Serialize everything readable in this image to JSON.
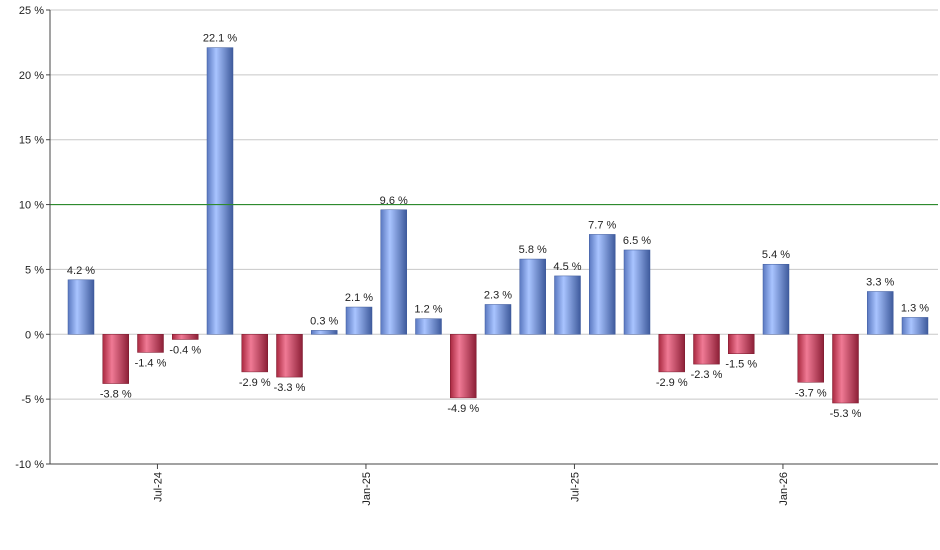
{
  "chart_data": {
    "type": "bar",
    "title": "",
    "xlabel": "",
    "ylabel": "",
    "ylim": [
      -10,
      25
    ],
    "yticks": [
      -10,
      -5,
      0,
      5,
      10,
      15,
      20,
      25
    ],
    "ytick_suffix": " %",
    "grid": true,
    "reference_line": {
      "value": 10,
      "color": "#2e8b2e"
    },
    "positive_color": "#7d9fe0",
    "negative_color": "#c84060",
    "values": [
      4.2,
      -3.8,
      -1.4,
      -0.4,
      22.1,
      -2.9,
      -3.3,
      0.3,
      2.1,
      9.6,
      1.2,
      -4.9,
      2.3,
      5.8,
      4.5,
      7.7,
      6.5,
      -2.9,
      -2.3,
      -1.5,
      5.4,
      -3.7,
      -5.3,
      3.3,
      1.3
    ],
    "labels": [
      "4.2 %",
      "-3.8 %",
      "-1.4 %",
      "-0.4 %",
      "22.1 %",
      "-2.9 %",
      "-3.3 %",
      "0.3 %",
      "2.1 %",
      "9.6 %",
      "1.2 %",
      "-4.9 %",
      "2.3 %",
      "5.8 %",
      "4.5 %",
      "7.7 %",
      "6.5 %",
      "-2.9 %",
      "-2.3 %",
      "-1.5 %",
      "5.4 %",
      "-3.7 %",
      "-5.3 %",
      "3.3 %",
      "1.3 %"
    ],
    "x_ticks": [
      {
        "label": "Jul-24",
        "index": 2.2
      },
      {
        "label": "Jan-25",
        "index": 8.2
      },
      {
        "label": "Jul-25",
        "index": 14.2
      },
      {
        "label": "Jan-26",
        "index": 20.2
      }
    ]
  }
}
